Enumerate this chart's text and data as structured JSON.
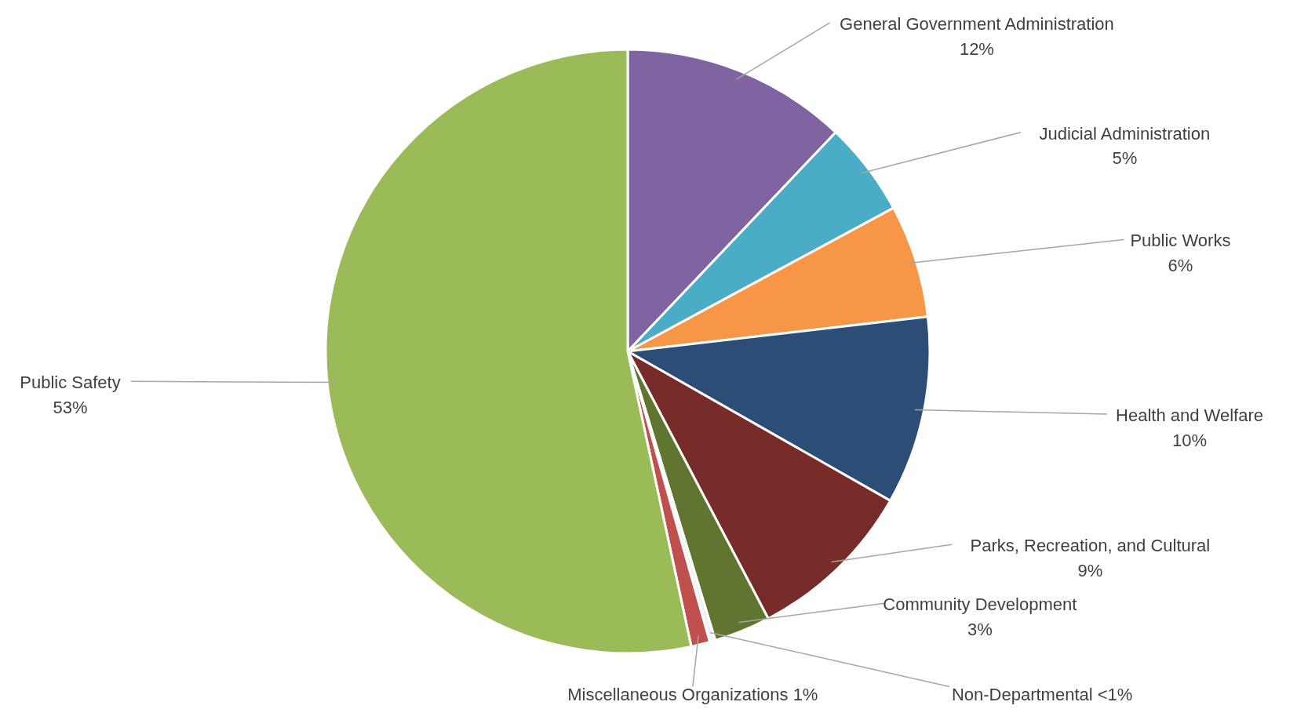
{
  "chart_data": {
    "type": "pie",
    "categories": [
      "General Government Administration",
      "Judicial Administration",
      "Public Works",
      "Health and Welfare",
      "Parks, Recreation, and Cultural",
      "Community Development",
      "Non-Departmental",
      "Miscellaneous Organizations",
      "Public Safety"
    ],
    "values": [
      12,
      5,
      6,
      10,
      9,
      3,
      0.3,
      1,
      53
    ],
    "value_labels": [
      "12%",
      "5%",
      "6%",
      "10%",
      "9%",
      "3%",
      "<1%",
      "1%",
      "53%"
    ],
    "colors": [
      "#8064a2",
      "#4bacc6",
      "#f79646",
      "#2c4d75",
      "#772c2a",
      "#5f7530",
      "#f2f2f2",
      "#c0504d",
      "#9bbb59"
    ]
  }
}
